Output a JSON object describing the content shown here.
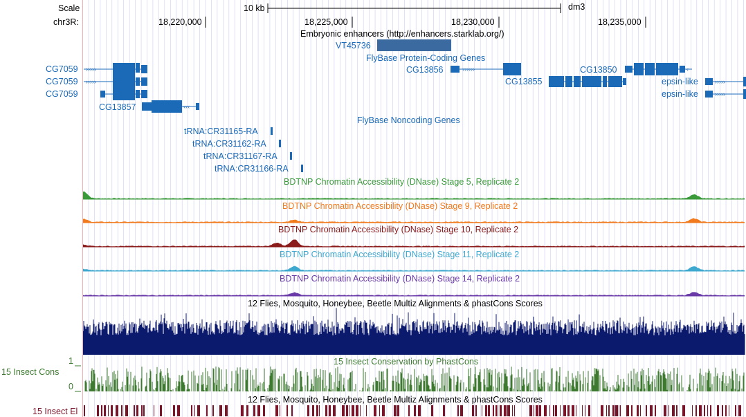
{
  "ruler": {
    "scale_label": "Scale",
    "scale_bar_label": "10 kb",
    "assembly": "dm3",
    "chrom_label": "chr3R:",
    "positions": [
      "18,220,000",
      "18,225,000",
      "18,230,000",
      "18,235,000"
    ]
  },
  "tracks": {
    "enhancers": {
      "title": "Embryonic enhancers (http://enhancers.starklab.org/)",
      "item": "VT45736"
    },
    "coding": {
      "title": "FlyBase Protein-Coding Genes"
    },
    "noncoding": {
      "title": "FlyBase Noncoding Genes"
    },
    "dnase": [
      {
        "title": "BDTNP Chromatin Accessibility (DNase) Stage 5, Replicate 2",
        "color": "#3a9a3a"
      },
      {
        "title": "BDTNP Chromatin Accessibility (DNase) Stage 9, Replicate 2",
        "color": "#f07a1c"
      },
      {
        "title": "BDTNP Chromatin Accessibility (DNase) Stage 10, Replicate 2",
        "color": "#8b1a1a"
      },
      {
        "title": "BDTNP Chromatin Accessibility (DNase) Stage 11, Replicate 2",
        "color": "#3ea8cf"
      },
      {
        "title": "BDTNP Chromatin Accessibility (DNase) Stage 14, Replicate 2",
        "color": "#6a3aa8"
      }
    ],
    "multiz": {
      "title": "12 Flies, Mosquito, Honeybee, Beetle Multiz Alignments & phastCons Scores",
      "color": "#0c1a6e"
    },
    "phastcons": {
      "title": "15 Insect Conservation by PhastCons",
      "side_label": "15 Insect Cons",
      "axis_max": "1",
      "axis_min": "0",
      "color": "#3d7a30"
    },
    "elements": {
      "title": "12 Flies, Mosquito, Honeybee, Beetle Multiz Alignments & phastCons Scores",
      "side_label": "15 Insect El",
      "color": "#7a1428"
    }
  },
  "genes": {
    "coding": [
      "CG7059",
      "CG7059",
      "CG7059",
      "CG13857",
      "CG13856",
      "CG13855",
      "CG13850",
      "epsin-like",
      "epsin-like"
    ],
    "noncoding": [
      "tRNA:CR31165-RA",
      "tRNA:CR31162-RA",
      "tRNA:CR31167-RA",
      "tRNA:CR31166-RA"
    ]
  },
  "colors": {
    "gene": "#1a6ab8",
    "grid": "#ccccf0",
    "enhancer_item": "#3a6aa0"
  }
}
